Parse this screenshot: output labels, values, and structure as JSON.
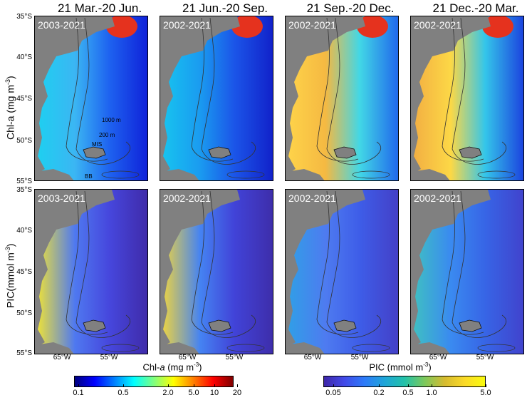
{
  "columns": [
    {
      "title": "21 Mar.-20 Jun."
    },
    {
      "title": "21 Jun.-20 Sep."
    },
    {
      "title": "21 Sep.-20 Dec."
    },
    {
      "title": "21 Dec.-20 Mar."
    }
  ],
  "rows": [
    {
      "label_main": "Chl-a (mg m",
      "label_sup": "-3",
      "label_end": ")",
      "periods": [
        "2003-2021",
        "2002-2021",
        "2002-2021",
        "2002-2021"
      ]
    },
    {
      "label_main": "PIC(mmol m",
      "label_sup": "-3",
      "label_end": ")",
      "periods": [
        "2003-2021",
        "2002-2021",
        "2002-2021",
        "2002-2021"
      ]
    }
  ],
  "latitude_ticks": [
    "35°S",
    "40°S",
    "45°S",
    "50°S",
    "55°S"
  ],
  "longitude_ticks": [
    "65°W",
    "55°W"
  ],
  "annotations": {
    "contour_1000": "1000 m",
    "contour_200": "200 m",
    "mis": "MIS",
    "bb": "BB"
  },
  "colorbars": {
    "chl": {
      "label_prefix": "Chl-",
      "label_var": "a",
      "label_unit": " (mg m",
      "label_sup": "-3",
      "label_end": ")",
      "ticks": [
        "0.1",
        "0.5",
        "2.0",
        "5.0",
        "10",
        "20"
      ],
      "colors": [
        "#00007f",
        "#0000ff",
        "#007fff",
        "#00ffff",
        "#7fff7f",
        "#ffff00",
        "#ff7f00",
        "#ff0000",
        "#7f0000"
      ]
    },
    "pic": {
      "label_main": "PIC (mmol m",
      "label_sup": "-3",
      "label_end": ")",
      "ticks": [
        "0.05",
        "0.2",
        "0.5",
        "1.0",
        "5.0"
      ],
      "colors": [
        "#3e26a8",
        "#4249e8",
        "#2d7af9",
        "#1ea5d9",
        "#22c2a9",
        "#7cc85c",
        "#d6bb2f",
        "#fbda27",
        "#f9fb0e"
      ]
    }
  }
}
